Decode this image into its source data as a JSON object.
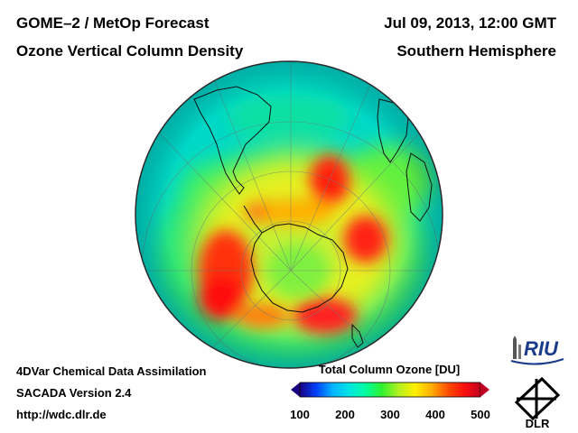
{
  "header": {
    "title": "GOME–2 / MetOp Forecast",
    "subtitle": "Ozone Vertical Column Density",
    "date": "Jul 09, 2013, 12:00 GMT",
    "hemisphere": "Southern Hemisphere"
  },
  "footer": {
    "line1": "4DVar Chemical Data Assimilation",
    "line2": "SACADA Version 2.4",
    "line3": "http://wdc.dlr.de"
  },
  "colorbar": {
    "title": "Total Column Ozone [DU]",
    "ticks": [
      "100",
      "200",
      "300",
      "400",
      "500"
    ],
    "min": 100,
    "max": 500,
    "colors": [
      "#1a0080",
      "#0040ff",
      "#00b4ff",
      "#00e5e5",
      "#00ffa0",
      "#30f030",
      "#b0f020",
      "#fff000",
      "#ffb000",
      "#ff5000",
      "#ff1010",
      "#c00020"
    ]
  },
  "logos": {
    "riu": "RIU",
    "dlr": "DLR"
  },
  "colors": {
    "background": "#ffffff",
    "ozone_low": "#00d8d0",
    "ozone_mid": "#40f040",
    "ozone_high": "#ff2020"
  }
}
